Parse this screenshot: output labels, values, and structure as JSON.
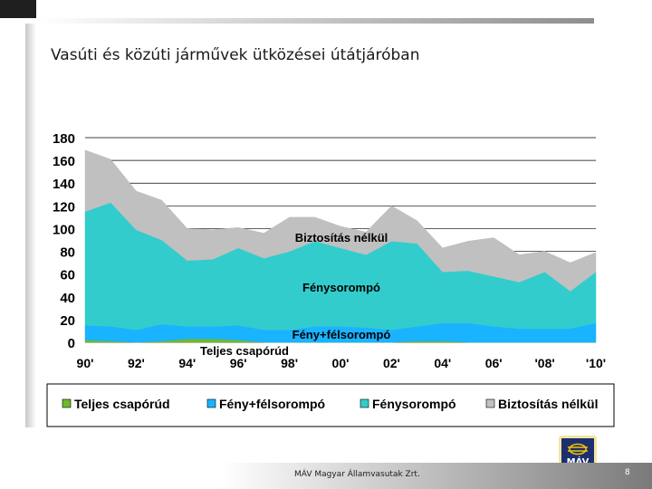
{
  "slide": {
    "title": "Vasúti és közúti járművek ütközései útátjáróban",
    "footer": "MÁV Magyar Államvasutak Zrt.",
    "page_number": "8",
    "logo_text": "MÁV"
  },
  "colors": {
    "teljes": "#70b82c",
    "feny_felso": "#1ab3ff",
    "fenyso": "#33cccc",
    "biztositas": "#c0c0c0",
    "gridline": "#000000"
  },
  "chart_data": {
    "type": "area",
    "stacked": true,
    "x": [
      "90'",
      "91'",
      "92'",
      "93'",
      "94'",
      "95'",
      "96'",
      "97'",
      "98'",
      "99'",
      "00'",
      "01'",
      "02'",
      "03'",
      "04'",
      "05'",
      "06'",
      "07'",
      "'08'",
      "09'",
      "'10'"
    ],
    "x_tick_labels": [
      "90'",
      "92'",
      "94'",
      "96'",
      "98'",
      "00'",
      "02'",
      "04'",
      "06'",
      "'08'",
      "'10'"
    ],
    "ylim": [
      0,
      180
    ],
    "y_ticks": [
      0,
      20,
      40,
      60,
      80,
      100,
      120,
      140,
      160,
      180
    ],
    "grid": true,
    "legend_position": "bottom",
    "series": [
      {
        "name": "Teljes csapórúd",
        "color": "#70b82c",
        "values": [
          2,
          1,
          0,
          1,
          3,
          3,
          2,
          0,
          0,
          0,
          0,
          0,
          0,
          1,
          1,
          0,
          0,
          0,
          0,
          0,
          0
        ]
      },
      {
        "name": "Fény+félsorompó",
        "color": "#1ab3ff",
        "values": [
          13,
          13,
          11,
          15,
          11,
          11,
          13,
          11,
          11,
          14,
          14,
          13,
          11,
          13,
          16,
          17,
          14,
          12,
          12,
          12,
          17
        ]
      },
      {
        "name": "Fénysorompó",
        "color": "#33cccc",
        "values": [
          100,
          109,
          88,
          74,
          58,
          59,
          68,
          63,
          69,
          75,
          69,
          64,
          78,
          73,
          45,
          46,
          44,
          41,
          50,
          33,
          45
        ]
      },
      {
        "name": "Biztosítás nélkül",
        "color": "#c0c0c0",
        "values": [
          54,
          38,
          34,
          35,
          28,
          26,
          18,
          22,
          30,
          21,
          19,
          20,
          31,
          20,
          21,
          26,
          34,
          24,
          18,
          25,
          17
        ]
      }
    ],
    "annotations": [
      "Biztosítás nélkül",
      "Fénysorompó",
      "Fény+félsorompó",
      "Teljes csapórúd"
    ]
  }
}
